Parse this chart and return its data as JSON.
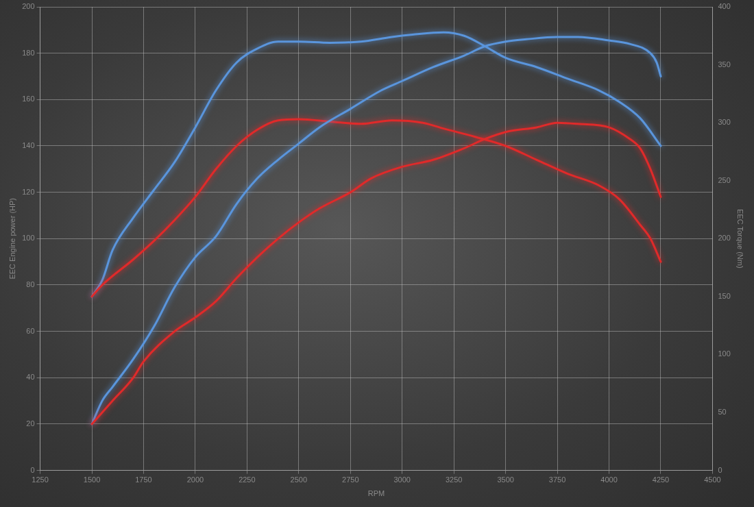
{
  "chart_data": {
    "type": "line",
    "xlabel": "RPM",
    "ylabel": "EEC Engine power (HP)",
    "y2label": "EEC Torque (Nm)",
    "xlim": [
      1250,
      4500
    ],
    "xticks": [
      1250,
      1500,
      1750,
      2000,
      2250,
      2500,
      2750,
      3000,
      3250,
      3500,
      3750,
      4000,
      4250,
      4500
    ],
    "ylim": [
      0,
      200
    ],
    "yticks": [
      0,
      20,
      40,
      60,
      80,
      100,
      120,
      140,
      160,
      180,
      200
    ],
    "y2lim": [
      0,
      400
    ],
    "y2ticks": [
      0,
      50,
      100,
      150,
      200,
      250,
      300,
      350,
      400
    ],
    "grid": true,
    "series": [
      {
        "color": "#e02a2a",
        "x": [
          1500,
          1550,
          1600,
          1700,
          1750,
          1900,
          2000,
          2100,
          2200,
          2300,
          2400,
          2500,
          2600,
          2750,
          2850,
          3000,
          3150,
          3300,
          3400,
          3500,
          3650,
          3750,
          3850,
          4000,
          4100,
          4150,
          4200,
          4250
        ],
        "values": [
          20,
          25,
          30,
          40,
          47,
          60,
          66,
          73,
          83,
          92,
          100,
          107,
          113,
          120,
          126,
          131,
          134,
          139,
          143,
          146,
          148,
          150,
          149.5,
          148,
          143,
          139,
          130,
          118
        ]
      },
      {
        "color": "#5a95dc",
        "x": [
          1500,
          1550,
          1600,
          1700,
          1800,
          1900,
          2000,
          2100,
          2200,
          2300,
          2400,
          2500,
          2600,
          2750,
          2900,
          3000,
          3150,
          3300,
          3400,
          3500,
          3600,
          3750,
          3850,
          4000,
          4100,
          4200,
          4230,
          4250
        ],
        "values": [
          20,
          30,
          36,
          48,
          62,
          79,
          92,
          101,
          115,
          126,
          134,
          141,
          148,
          156,
          164,
          168,
          174,
          179,
          183,
          185,
          186,
          187,
          187,
          185.5,
          184,
          180,
          176,
          170
        ]
      },
      {
        "color": "#e02a2a",
        "axis": "y2",
        "x": [
          1500,
          1550,
          1700,
          1800,
          1900,
          2000,
          2100,
          2200,
          2300,
          2400,
          2500,
          2650,
          2800,
          2950,
          3100,
          3200,
          3350,
          3500,
          3650,
          3800,
          3950,
          4050,
          4150,
          4200,
          4250
        ],
        "values": [
          150,
          160,
          182,
          198,
          216,
          236,
          260,
          280,
          294,
          302,
          303,
          301,
          299,
          302,
          300,
          295,
          288,
          280,
          268,
          256,
          246,
          234,
          212,
          200,
          180
        ]
      },
      {
        "color": "#5a95dc",
        "axis": "y2",
        "x": [
          1500,
          1550,
          1600,
          1700,
          1800,
          1900,
          2000,
          2100,
          2200,
          2300,
          2400,
          2500,
          2650,
          2800,
          2950,
          3050,
          3200,
          3300,
          3400,
          3500,
          3650,
          3800,
          3950,
          4050,
          4150,
          4250
        ],
        "values": [
          150,
          164,
          190,
          218,
          242,
          266,
          296,
          328,
          352,
          364,
          370,
          370,
          369,
          370,
          374,
          376,
          378,
          375,
          366,
          356,
          348,
          338,
          328,
          318,
          304,
          280
        ]
      }
    ]
  }
}
